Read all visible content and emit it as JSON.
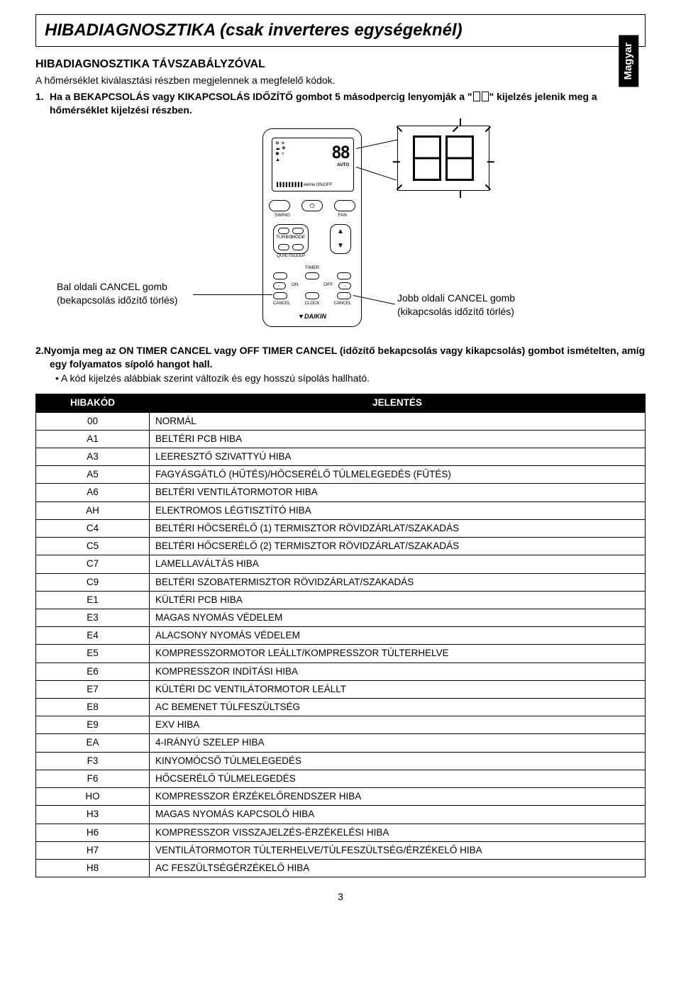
{
  "side_tab": "Magyar",
  "title": "HIBADIAGNOSZTIKA (csak inverteres egységeknél)",
  "subheading": "HIBADIAGNOSZTIKA TÁVSZABÁLYZÓVAL",
  "intro": "A hőmérséklet kiválasztási részben megjelennek a megfelelő kódok.",
  "step1_num": "1.",
  "step1_a": "Ha a BEKAPCSOLÁS  vagy KIKAPCSOLÁS IDŐZÍTŐ gombot 5 másodpercig lenyomják a \"",
  "step1_b": "\" kijelzés jelenik meg a hőmérséklet kijelzési részben.",
  "remote": {
    "temp": "88",
    "auto": "AUTO",
    "swing": "SWING",
    "fan": "FAN",
    "turbo": "TURBO",
    "mode": "MODE",
    "quiet": "QUIET",
    "sleep": "SLEEP",
    "timer": "TIMER",
    "on": "ON",
    "off": "OFF",
    "cancel": "CANCEL",
    "clock": "CLOCK",
    "brand": "DAIKIN"
  },
  "callout_left_1": "Bal oldali CANCEL gomb",
  "callout_left_2": "(bekapcsolás időzítő törlés)",
  "callout_right_1": "Jobb oldali CANCEL gomb",
  "callout_right_2": "(kikapcsolás időzítő törlés)",
  "step2_num": "2.",
  "step2_text": "Nyomja meg az ON TIMER CANCEL vagy OFF TIMER CANCEL (időzítő bekapcsolás vagy kikapcsolás) gombot ismételten, amíg egy folyamatos sípoló hangot hall.",
  "bullet": "A kód kijelzés alábbiak szerint változik és egy hosszú sípolás hallható.",
  "table": {
    "header_code": "HIBAKÓD",
    "header_meaning": "JELENTÉS",
    "rows": [
      [
        "00",
        "NORMÁL"
      ],
      [
        "A1",
        "BELTÉRI PCB HIBA"
      ],
      [
        "A3",
        "LEERESZTŐ SZIVATTYÚ HIBA"
      ],
      [
        "A5",
        "FAGYÁSGÁTLÓ (HŰTÉS)/HŐCSERÉLŐ TÚLMELEGEDÉS (FŰTÉS)"
      ],
      [
        "A6",
        "BELTÉRI VENTILÁTORMOTOR HIBA"
      ],
      [
        "AH",
        "ELEKTROMOS LÉGTISZTÍTÓ HIBA"
      ],
      [
        "C4",
        "BELTÉRI HŐCSERÉLŐ (1) TERMISZTOR RÖVIDZÁRLAT/SZAKADÁS"
      ],
      [
        "C5",
        "BELTÉRI HŐCSERÉLŐ (2) TERMISZTOR RÖVIDZÁRLAT/SZAKADÁS"
      ],
      [
        "C7",
        "LAMELLAVÁLTÁS HIBA"
      ],
      [
        "C9",
        "BELTÉRI SZOBATERMISZTOR RÖVIDZÁRLAT/SZAKADÁS"
      ],
      [
        "E1",
        "KÜLTÉRI PCB HIBA"
      ],
      [
        "E3",
        "MAGAS NYOMÁS VÉDELEM"
      ],
      [
        "E4",
        "ALACSONY NYOMÁS VÉDELEM"
      ],
      [
        "E5",
        "KOMPRESSZORMOTOR LEÁLLT/KOMPRESSZOR TÚLTERHELVE"
      ],
      [
        "E6",
        "KOMPRESSZOR INDÍTÁSI HIBA"
      ],
      [
        "E7",
        "KÜLTÉRI DC VENTILÁTORMOTOR LEÁLLT"
      ],
      [
        "E8",
        "AC BEMENET TÚLFESZÜLTSÉG"
      ],
      [
        "E9",
        "EXV HIBA"
      ],
      [
        "EA",
        "4-IRÁNYÚ SZELEP HIBA"
      ],
      [
        "F3",
        "KINYOMÓCSŐ TÚLMELEGEDÉS"
      ],
      [
        "F6",
        "HŐCSERÉLŐ TÚLMELEGEDÉS"
      ],
      [
        "HO",
        "KOMPRESSZOR ÉRZÉKELŐRENDSZER HIBA"
      ],
      [
        "H3",
        "MAGAS NYOMÁS KAPCSOLÓ HIBA"
      ],
      [
        "H6",
        "KOMPRESSZOR VISSZAJELZÉS-ÉRZÉKELÉSI HIBA"
      ],
      [
        "H7",
        "VENTILÁTORMOTOR TÚLTERHELVE/TÚLFESZÜLTSÉG/ÉRZÉKELŐ HIBA"
      ],
      [
        "H8",
        "AC FESZÜLTSÉGÉRZÉKELŐ HIBA"
      ]
    ]
  },
  "page_number": "3"
}
